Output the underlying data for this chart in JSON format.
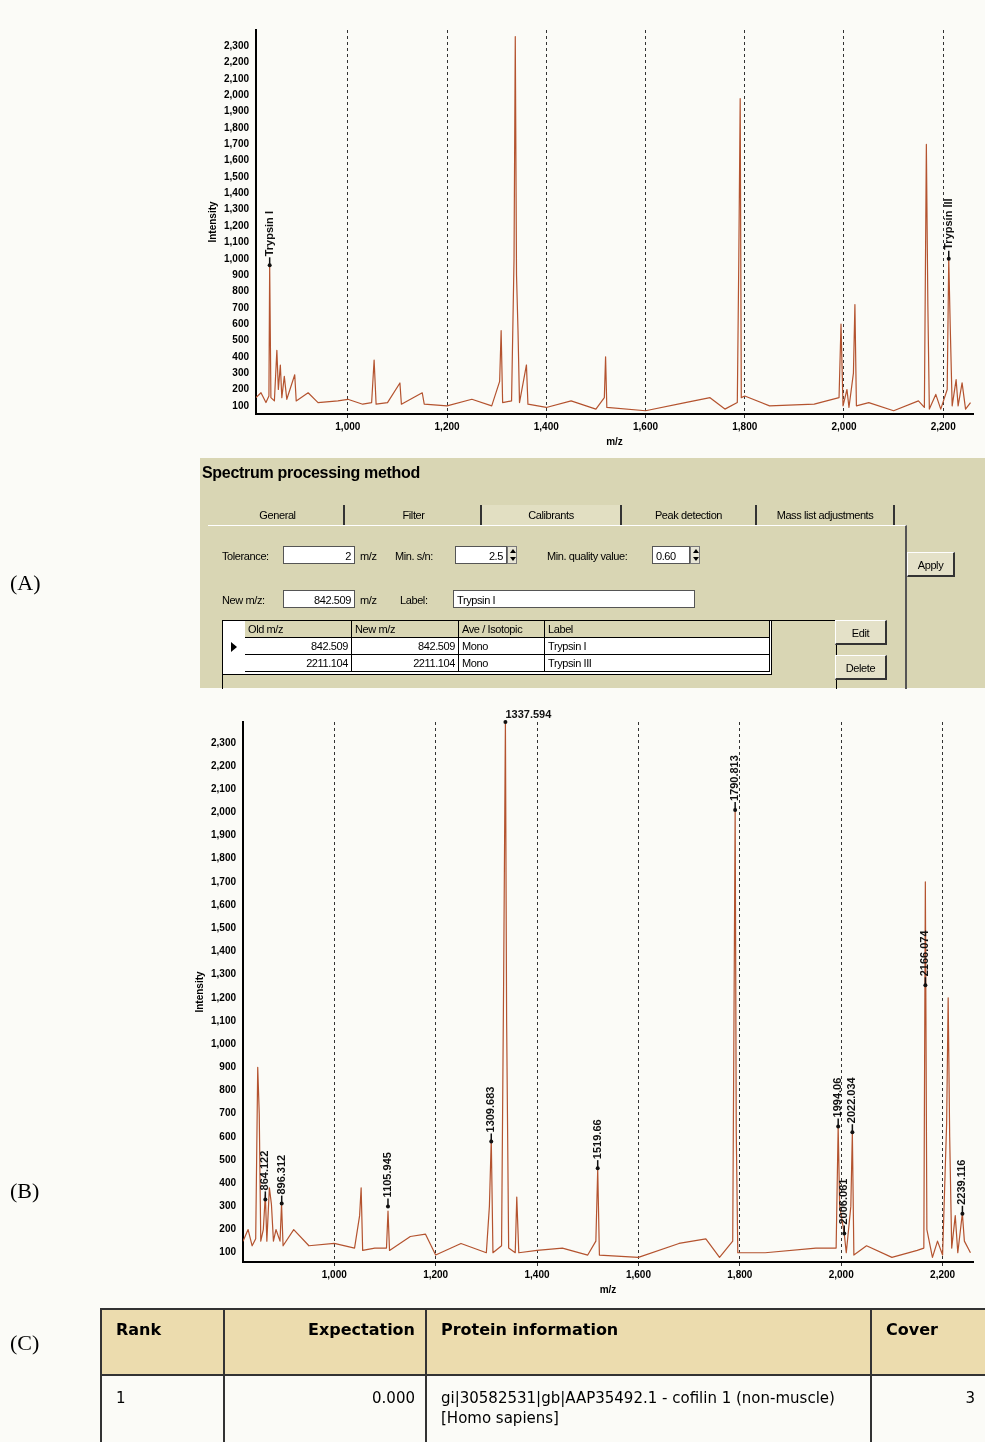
{
  "chart_data": [
    {
      "type": "line",
      "xlabel": "m/z",
      "ylabel": "Intensity",
      "color": "#b4532f",
      "grid": "x",
      "xlim": [
        815,
        2260
      ],
      "ylim": [
        50,
        2400
      ],
      "xticks": [
        {
          "value": 1000,
          "label": "1,000"
        },
        {
          "value": 1200,
          "label": "1,200"
        },
        {
          "value": 1400,
          "label": "1,400"
        },
        {
          "value": 1600,
          "label": "1,600"
        },
        {
          "value": 1800,
          "label": "1,800"
        },
        {
          "value": 2000,
          "label": "2,000"
        },
        {
          "value": 2200,
          "label": "2,200"
        }
      ],
      "yticks": [
        100,
        200,
        300,
        400,
        500,
        600,
        700,
        800,
        900,
        {
          "value": 1000,
          "label": "1,000"
        },
        {
          "value": 1100,
          "label": "1,100"
        },
        {
          "value": 1200,
          "label": "1,200"
        },
        {
          "value": 1300,
          "label": "1,300"
        },
        {
          "value": 1400,
          "label": "1,400"
        },
        {
          "value": 1500,
          "label": "1,500"
        },
        {
          "value": 1600,
          "label": "1,600"
        },
        {
          "value": 1700,
          "label": "1,700"
        },
        {
          "value": 1800,
          "label": "1,800"
        },
        {
          "value": 1900,
          "label": "1,900"
        },
        {
          "value": 2000,
          "label": "2,000"
        },
        {
          "value": 2100,
          "label": "2,100"
        },
        {
          "value": 2200,
          "label": "2,200"
        },
        {
          "value": 2300,
          "label": "2,300"
        }
      ],
      "x": [
        815,
        825,
        835,
        841,
        842.5,
        845,
        852,
        857,
        860,
        864,
        867,
        872,
        877,
        893,
        896,
        920,
        940,
        980,
        1000,
        1030,
        1048,
        1053,
        1057,
        1080,
        1105,
        1108,
        1150,
        1154,
        1200,
        1250,
        1290,
        1306,
        1309,
        1312,
        1330,
        1335,
        1337.5,
        1340,
        1343,
        1346,
        1360,
        1363,
        1400,
        1450,
        1500,
        1517,
        1519.5,
        1522,
        1600,
        1680,
        1730,
        1760,
        1785,
        1788,
        1790.8,
        1793,
        1800,
        1850,
        1940,
        1990,
        1994,
        1998,
        2006,
        2010,
        2019,
        2022,
        2025,
        2050,
        2100,
        2150,
        2162,
        2166,
        2169,
        2172,
        2185,
        2195,
        2208,
        2211.1,
        2214,
        2218,
        2226,
        2230,
        2238,
        2245,
        2255
      ],
      "values": [
        150,
        180,
        120,
        160,
        960,
        150,
        130,
        440,
        200,
        350,
        150,
        280,
        140,
        290,
        130,
        180,
        120,
        130,
        140,
        110,
        120,
        380,
        110,
        120,
        240,
        110,
        180,
        110,
        100,
        140,
        100,
        250,
        560,
        120,
        130,
        1000,
        2360,
        900,
        560,
        120,
        350,
        110,
        90,
        130,
        80,
        150,
        400,
        90,
        70,
        120,
        150,
        80,
        120,
        1000,
        1980,
        150,
        160,
        100,
        110,
        150,
        600,
        100,
        200,
        90,
        300,
        720,
        100,
        120,
        70,
        130,
        90,
        1700,
        720,
        80,
        170,
        80,
        200,
        1000,
        600,
        100,
        260,
        100,
        240,
        80,
        120
      ],
      "annotations": [
        "(A)",
        {
          "text": "Trypsin I",
          "x": 842.5,
          "y": 960
        },
        {
          "text": "Trypsin III",
          "x": 2211.1,
          "y": 1000
        }
      ]
    },
    {
      "type": "other",
      "title": "Spectrum processing method",
      "annotations": [
        "General",
        "Filter",
        "Calibrants",
        "Peak detection",
        "Mass list adjustments",
        "Tolerance:",
        "2",
        "m/z",
        "Min. s/n:",
        "2.5",
        "Min. quality value:",
        "0.60",
        "Apply",
        "New m/z:",
        "842.509",
        "m/z",
        "Label:",
        "Trypsin I",
        "Old m/z",
        "New m/z",
        "Ave / Isotopic",
        "Label",
        "842.509",
        "842.509",
        "Mono",
        "Trypsin I",
        "2211.104",
        "2211.104",
        "Mono",
        "Trypsin III",
        "Edit",
        "Delete"
      ]
    },
    {
      "type": "line",
      "xlabel": "m/z",
      "ylabel": "Intensity",
      "color": "#b4532f",
      "grid": "x",
      "xlim": [
        820,
        2260
      ],
      "ylim": [
        60,
        2390
      ],
      "xticks": [
        {
          "value": 1000,
          "label": "1,000"
        },
        {
          "value": 1200,
          "label": "1,200"
        },
        {
          "value": 1400,
          "label": "1,400"
        },
        {
          "value": 1600,
          "label": "1,600"
        },
        {
          "value": 1800,
          "label": "1,800"
        },
        {
          "value": 2000,
          "label": "2,000"
        },
        {
          "value": 2200,
          "label": "2,200"
        }
      ],
      "yticks": [
        100,
        200,
        300,
        400,
        500,
        600,
        700,
        800,
        900,
        {
          "value": 1000,
          "label": "1,000"
        },
        {
          "value": 1100,
          "label": "1,100"
        },
        {
          "value": 1200,
          "label": "1,200"
        },
        {
          "value": 1300,
          "label": "1,300"
        },
        {
          "value": 1400,
          "label": "1,400"
        },
        {
          "value": 1500,
          "label": "1,500"
        },
        {
          "value": 1600,
          "label": "1,600"
        },
        {
          "value": 1700,
          "label": "1,700"
        },
        {
          "value": 1800,
          "label": "1,800"
        },
        {
          "value": 1900,
          "label": "1,900"
        },
        {
          "value": 2000,
          "label": "2,000"
        },
        {
          "value": 2100,
          "label": "2,100"
        },
        {
          "value": 2200,
          "label": "2,200"
        },
        {
          "value": 2300,
          "label": "2,300"
        }
      ],
      "x": [
        820,
        830,
        838,
        845,
        849,
        852,
        855,
        860,
        864,
        867,
        872,
        876,
        880,
        885,
        893,
        896,
        899,
        920,
        950,
        1000,
        1040,
        1050,
        1053,
        1056,
        1080,
        1103,
        1106,
        1109,
        1150,
        1180,
        1200,
        1250,
        1300,
        1306,
        1309.7,
        1313,
        1330,
        1334,
        1337.6,
        1340,
        1344,
        1357,
        1360,
        1364,
        1400,
        1450,
        1500,
        1516,
        1519.7,
        1523,
        1600,
        1680,
        1733,
        1760,
        1786,
        1790.8,
        1793,
        1796,
        1850,
        1950,
        1990,
        1994,
        1997,
        2006,
        2010,
        2019,
        2022,
        2025,
        2050,
        2100,
        2150,
        2163,
        2166,
        2169,
        2180,
        2190,
        2200,
        2208,
        2211,
        2214,
        2218,
        2225,
        2230,
        2239,
        2243,
        2255
      ],
      "values": [
        150,
        200,
        130,
        160,
        900,
        700,
        150,
        200,
        350,
        150,
        380,
        310,
        150,
        200,
        150,
        310,
        130,
        200,
        130,
        140,
        120,
        260,
        380,
        110,
        120,
        120,
        280,
        110,
        170,
        180,
        90,
        140,
        100,
        300,
        590,
        100,
        130,
        1250,
        2390,
        1100,
        120,
        100,
        340,
        100,
        110,
        120,
        90,
        150,
        460,
        90,
        80,
        140,
        160,
        80,
        150,
        2010,
        620,
        100,
        100,
        120,
        120,
        645,
        300,
        183,
        100,
        300,
        620,
        90,
        130,
        80,
        110,
        120,
        1700,
        200,
        80,
        150,
        90,
        660,
        1200,
        600,
        120,
        260,
        100,
        270,
        150,
        100
      ],
      "annotations": [
        "(B)",
        {
          "text": "864.122",
          "x": 864,
          "y": 330
        },
        {
          "text": "896.312",
          "x": 896.312,
          "y": 312
        },
        {
          "text": "1105.945",
          "x": 1105.945,
          "y": 300
        },
        {
          "text": "1309.683",
          "x": 1309.683,
          "y": 580
        },
        {
          "text": "1337.594",
          "x": 1337.594,
          "y": 2390
        },
        {
          "text": "1519.66",
          "x": 1519.66,
          "y": 465
        },
        {
          "text": "1790.813",
          "x": 1790.813,
          "y": 2010
        },
        {
          "text": "1994.06",
          "x": 1994.06,
          "y": 645
        },
        {
          "text": "2006.061",
          "x": 2006.061,
          "y": 183
        },
        {
          "text": "2022.034",
          "x": 2022.034,
          "y": 620
        },
        {
          "text": "2166.074",
          "x": 2166.074,
          "y": 1254
        },
        {
          "text": "2239.116",
          "x": 2239.116,
          "y": 268
        }
      ]
    },
    {
      "type": "other",
      "annotations": [
        "(C)",
        "Rank",
        "Expectation",
        "Protein information",
        "Cover",
        "1",
        "0.000",
        "gi|30582531|gb|AAP35492.1 - cofilin 1 (non-muscle) [Homo sapiens]",
        "3"
      ]
    }
  ]
}
